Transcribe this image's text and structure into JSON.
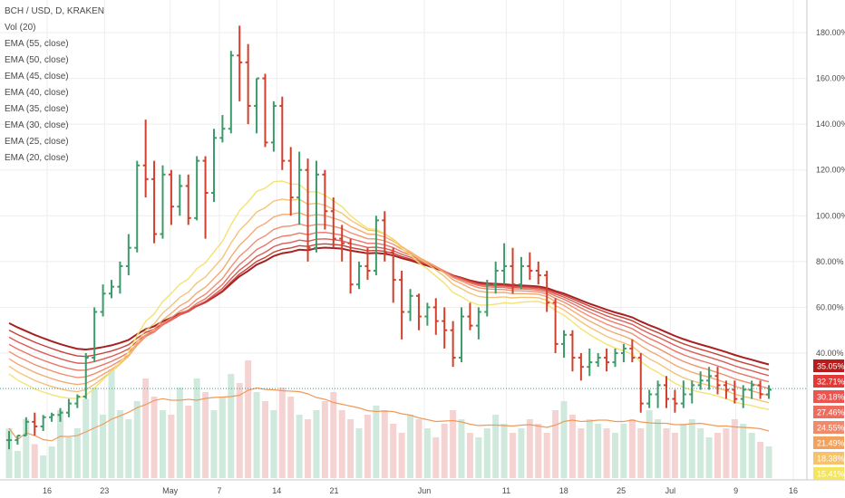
{
  "legend": {
    "title": "BCH / USD, D, KRAKEN",
    "volume": "Vol (20)",
    "ema_labels": [
      "EMA (55, close)",
      "EMA (50, close)",
      "EMA (45, close)",
      "EMA (40, close)",
      "EMA (35, close)",
      "EMA (30, close)",
      "EMA (25, close)",
      "EMA (20, close)"
    ]
  },
  "chart_data": {
    "type": "candlestick",
    "title": "BCH / USD, D, KRAKEN",
    "y_axis": {
      "unit": "%",
      "range": [
        10,
        186
      ],
      "tick_labels": [
        "180.00%",
        "160.00%",
        "140.00%",
        "120.00%",
        "100.00%",
        "80.00%",
        "60.00%",
        "40.00%"
      ],
      "tick_values": [
        180,
        160,
        140,
        120,
        100,
        80,
        60,
        40
      ],
      "position": "right"
    },
    "x_axis": {
      "tick_labels": [
        "16",
        "23",
        "May",
        "7",
        "14",
        "21",
        "Jun",
        "11",
        "18",
        "25",
        "Jul",
        "9",
        "16"
      ],
      "tick_dates": [
        "2018-04-16",
        "2018-04-23",
        "2018-05-01",
        "2018-05-07",
        "2018-05-14",
        "2018-05-21",
        "2018-06-01",
        "2018-06-11",
        "2018-06-18",
        "2018-06-25",
        "2018-07-01",
        "2018-07-09",
        "2018-07-16"
      ]
    },
    "date_range": [
      "2018-04-10",
      "2018-07-13"
    ],
    "last_value": 24.55,
    "badges": [
      {
        "value": "35.05%",
        "color": "#b71c1c"
      },
      {
        "value": "32.71%",
        "color": "#e53935"
      },
      {
        "value": "30.18%",
        "color": "#ef5350"
      },
      {
        "value": "27.46%",
        "color": "#ef6c5c"
      },
      {
        "value": "24.55%",
        "color": "#f08a6a"
      },
      {
        "value": "21.49%",
        "color": "#f4a259"
      },
      {
        "value": "18.38%",
        "color": "#f6c26b"
      },
      {
        "value": "15.41%",
        "color": "#f4e55c"
      }
    ],
    "series": [
      {
        "name": "EMA (55, close)",
        "color": "#a31515",
        "start": 55,
        "end": 35.05
      },
      {
        "name": "EMA (50, close)",
        "color": "#c0392b",
        "start": 52,
        "end": 32.71
      },
      {
        "name": "EMA (45, close)",
        "color": "#d9534f",
        "start": 49,
        "end": 30.18
      },
      {
        "name": "EMA (40, close)",
        "color": "#e8705f",
        "start": 46,
        "end": 27.46
      },
      {
        "name": "EMA (35, close)",
        "color": "#ef8a6a",
        "start": 43,
        "end": 24.55
      },
      {
        "name": "EMA (30, close)",
        "color": "#f2a56c",
        "start": 40,
        "end": 21.49
      },
      {
        "name": "EMA (25, close)",
        "color": "#f4c070",
        "start": 37,
        "end": 18.38
      },
      {
        "name": "EMA (20, close)",
        "color": "#f2e26a",
        "start": 34,
        "end": 15.41
      }
    ],
    "ohlc": [
      [
        2,
        6,
        -2,
        2
      ],
      [
        2,
        4,
        0,
        4
      ],
      [
        4,
        12,
        4,
        10
      ],
      [
        10,
        14,
        4,
        8
      ],
      [
        8,
        13,
        6,
        12
      ],
      [
        12,
        14,
        10,
        13
      ],
      [
        13,
        16,
        10,
        14
      ],
      [
        14,
        20,
        12,
        18
      ],
      [
        18,
        22,
        16,
        21
      ],
      [
        21,
        40,
        20,
        38
      ],
      [
        38,
        60,
        36,
        58
      ],
      [
        58,
        70,
        56,
        66
      ],
      [
        66,
        72,
        64,
        69
      ],
      [
        69,
        80,
        66,
        78
      ],
      [
        78,
        92,
        74,
        86
      ],
      [
        86,
        124,
        84,
        122
      ],
      [
        122,
        142,
        108,
        116
      ],
      [
        116,
        124,
        88,
        92
      ],
      [
        92,
        122,
        90,
        118
      ],
      [
        118,
        120,
        96,
        104
      ],
      [
        104,
        118,
        100,
        113
      ],
      [
        113,
        118,
        96,
        99
      ],
      [
        99,
        126,
        98,
        124
      ],
      [
        124,
        126,
        90,
        110
      ],
      [
        110,
        138,
        106,
        134
      ],
      [
        134,
        144,
        132,
        138
      ],
      [
        138,
        172,
        136,
        170
      ],
      [
        170,
        183,
        150,
        167
      ],
      [
        167,
        175,
        140,
        148
      ],
      [
        148,
        160,
        136,
        160
      ],
      [
        160,
        162,
        130,
        132
      ],
      [
        132,
        150,
        128,
        148
      ],
      [
        148,
        152,
        120,
        124
      ],
      [
        124,
        130,
        100,
        108
      ],
      [
        108,
        128,
        96,
        120
      ],
      [
        120,
        125,
        80,
        86
      ],
      [
        86,
        124,
        84,
        118
      ],
      [
        118,
        120,
        94,
        102
      ],
      [
        102,
        108,
        86,
        90
      ],
      [
        90,
        96,
        80,
        88
      ],
      [
        88,
        90,
        66,
        70
      ],
      [
        70,
        80,
        68,
        78
      ],
      [
        78,
        86,
        72,
        76
      ],
      [
        76,
        100,
        74,
        98
      ],
      [
        98,
        102,
        80,
        84
      ],
      [
        84,
        86,
        62,
        72
      ],
      [
        72,
        76,
        46,
        58
      ],
      [
        58,
        68,
        54,
        65
      ],
      [
        65,
        66,
        50,
        56
      ],
      [
        56,
        62,
        52,
        60
      ],
      [
        60,
        64,
        48,
        54
      ],
      [
        54,
        60,
        42,
        50
      ],
      [
        50,
        54,
        34,
        38
      ],
      [
        38,
        60,
        36,
        56
      ],
      [
        56,
        62,
        50,
        52
      ],
      [
        52,
        60,
        46,
        58
      ],
      [
        58,
        72,
        56,
        70
      ],
      [
        70,
        80,
        66,
        76
      ],
      [
        76,
        88,
        70,
        78
      ],
      [
        78,
        86,
        66,
        70
      ],
      [
        70,
        82,
        68,
        78
      ],
      [
        78,
        84,
        72,
        76
      ],
      [
        76,
        80,
        70,
        74
      ],
      [
        74,
        76,
        58,
        62
      ],
      [
        62,
        64,
        40,
        44
      ],
      [
        44,
        50,
        38,
        48
      ],
      [
        48,
        50,
        32,
        38
      ],
      [
        38,
        40,
        28,
        34
      ],
      [
        34,
        42,
        30,
        36
      ],
      [
        36,
        40,
        34,
        38
      ],
      [
        38,
        42,
        32,
        36
      ],
      [
        36,
        42,
        34,
        40
      ],
      [
        40,
        44,
        36,
        42
      ],
      [
        42,
        46,
        36,
        38
      ],
      [
        38,
        40,
        14,
        18
      ],
      [
        18,
        24,
        16,
        22
      ],
      [
        22,
        28,
        16,
        26
      ],
      [
        26,
        30,
        16,
        20
      ],
      [
        20,
        24,
        14,
        18
      ],
      [
        18,
        28,
        16,
        22
      ],
      [
        22,
        28,
        18,
        26
      ],
      [
        26,
        32,
        24,
        28
      ],
      [
        28,
        34,
        24,
        30
      ],
      [
        30,
        34,
        22,
        26
      ],
      [
        26,
        28,
        20,
        24
      ],
      [
        24,
        28,
        18,
        20
      ],
      [
        20,
        26,
        16,
        24
      ],
      [
        24,
        28,
        20,
        26
      ],
      [
        26,
        28,
        20,
        22
      ],
      [
        22,
        26,
        20,
        24
      ]
    ],
    "volume": [
      22,
      12,
      26,
      15,
      10,
      14,
      30,
      18,
      22,
      35,
      40,
      28,
      48,
      30,
      26,
      34,
      44,
      36,
      30,
      28,
      40,
      32,
      44,
      38,
      30,
      36,
      46,
      42,
      52,
      38,
      34,
      30,
      40,
      36,
      28,
      26,
      30,
      34,
      38,
      30,
      26,
      22,
      28,
      32,
      30,
      24,
      20,
      28,
      26,
      22,
      18,
      24,
      30,
      26,
      20,
      18,
      22,
      28,
      24,
      20,
      22,
      26,
      24,
      20,
      30,
      34,
      28,
      22,
      26,
      24,
      22,
      20,
      24,
      26,
      22,
      30,
      26,
      22,
      20,
      24,
      26,
      22,
      18,
      20,
      22,
      26,
      24,
      20,
      16,
      14
    ]
  }
}
